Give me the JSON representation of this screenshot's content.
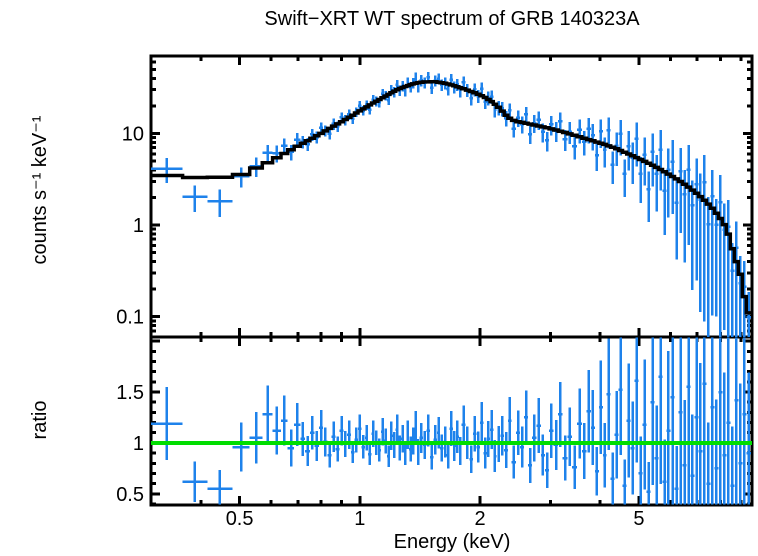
{
  "figure": {
    "title": "Swift−XRT WT spectrum of GRB 140323A",
    "background_color": "#ffffff"
  },
  "colors": {
    "data_points": "#1e82eb",
    "model_line": "#000000",
    "ratio_unity_line": "#00dd00",
    "axes": "#000000",
    "text": "#000000"
  },
  "axes": {
    "xlabel": "Energy (keV)",
    "x_ticks": [
      {
        "value": 0.5,
        "label": "0.5"
      },
      {
        "value": 1,
        "label": "1"
      },
      {
        "value": 2,
        "label": "2"
      },
      {
        "value": 5,
        "label": "5"
      }
    ],
    "top_panel": {
      "ylabel": "counts s⁻¹ keV⁻¹",
      "yscale": "log",
      "y_ticks": [
        {
          "value": 0.1,
          "label": "0.1"
        },
        {
          "value": 1,
          "label": "1"
        },
        {
          "value": 10,
          "label": "10"
        }
      ]
    },
    "bottom_panel": {
      "ylabel": "ratio",
      "yscale": "linear",
      "y_ticks": [
        {
          "value": 0.5,
          "label": "0.5"
        },
        {
          "value": 1,
          "label": "1"
        },
        {
          "value": 1.5,
          "label": "1.5"
        }
      ]
    }
  },
  "chart_data": [
    {
      "type": "scatter",
      "name": "counts-spectrum",
      "title": "Swift−XRT WT spectrum of GRB 140323A",
      "xlabel": "Energy (keV)",
      "ylabel": "counts s⁻¹ keV⁻¹",
      "xscale": "log",
      "yscale": "log",
      "xlim": [
        0.3,
        9.6
      ],
      "ylim": [
        0.06,
        70
      ],
      "x_major_ticks": [
        0.5,
        1,
        2,
        5
      ],
      "y_major_ticks": [
        0.1,
        1,
        10
      ],
      "legend": "blue crosses: observed counts with x bin-width and y error bars; black stepped line: folded model",
      "bin_edges_kev": [
        0.3,
        0.36,
        0.415,
        0.48,
        0.53,
        0.57,
        0.605,
        0.635,
        0.66,
        0.685,
        0.71,
        0.73,
        0.75,
        0.77,
        0.79,
        0.81,
        0.83,
        0.85,
        0.87,
        0.89,
        0.91,
        0.93,
        0.95,
        0.97,
        0.99,
        1.01,
        1.03,
        1.05,
        1.07,
        1.09,
        1.11,
        1.13,
        1.15,
        1.17,
        1.19,
        1.21,
        1.23,
        1.25,
        1.27,
        1.29,
        1.31,
        1.33,
        1.35,
        1.37,
        1.39,
        1.41,
        1.44,
        1.47,
        1.5,
        1.53,
        1.56,
        1.59,
        1.62,
        1.65,
        1.68,
        1.71,
        1.74,
        1.77,
        1.8,
        1.84,
        1.88,
        1.92,
        1.96,
        2.0,
        2.04,
        2.08,
        2.12,
        2.16,
        2.2,
        2.25,
        2.3,
        2.35,
        2.4,
        2.46,
        2.52,
        2.58,
        2.64,
        2.7,
        2.77,
        2.84,
        2.91,
        2.98,
        3.06,
        3.14,
        3.22,
        3.31,
        3.4,
        3.5,
        3.6,
        3.7,
        3.79,
        3.88,
        3.97,
        4.06,
        4.15,
        4.25,
        4.35,
        4.45,
        4.55,
        4.66,
        4.77,
        4.88,
        4.99,
        5.11,
        5.23,
        5.35,
        5.47,
        5.6,
        5.73,
        5.86,
        6.0,
        6.14,
        6.28,
        6.43,
        6.58,
        6.73,
        6.89,
        7.05,
        7.21,
        7.38,
        7.55,
        7.73,
        7.91,
        8.09,
        8.28,
        8.47,
        8.67,
        8.87,
        9.08,
        9.29,
        9.55
      ],
      "model_step_anchors": [
        [
          0.3,
          3.65
        ],
        [
          0.36,
          3.3
        ],
        [
          0.44,
          3.3
        ],
        [
          0.5,
          3.5
        ],
        [
          0.55,
          4.2
        ],
        [
          0.6,
          5.0
        ],
        [
          0.65,
          6.1
        ],
        [
          0.7,
          7.3
        ],
        [
          0.75,
          8.6
        ],
        [
          0.8,
          10.0
        ],
        [
          0.85,
          11.7
        ],
        [
          0.9,
          13.4
        ],
        [
          0.95,
          15.4
        ],
        [
          1.0,
          17.6
        ],
        [
          1.05,
          20.0
        ],
        [
          1.1,
          22.5
        ],
        [
          1.15,
          25.0
        ],
        [
          1.2,
          27.8
        ],
        [
          1.25,
          30.5
        ],
        [
          1.3,
          32.5
        ],
        [
          1.35,
          34.5
        ],
        [
          1.4,
          35.8
        ],
        [
          1.45,
          36.5
        ],
        [
          1.55,
          36.6
        ],
        [
          1.65,
          35.0
        ],
        [
          1.75,
          32.5
        ],
        [
          1.85,
          30.0
        ],
        [
          1.95,
          27.5
        ],
        [
          2.05,
          25.0
        ],
        [
          2.15,
          22.0
        ],
        [
          2.25,
          18.5
        ],
        [
          2.35,
          15.0
        ],
        [
          2.45,
          13.6
        ],
        [
          2.55,
          13.2
        ],
        [
          2.7,
          12.5
        ],
        [
          2.9,
          11.7
        ],
        [
          3.1,
          10.9
        ],
        [
          3.3,
          10.1
        ],
        [
          3.55,
          9.2
        ],
        [
          3.8,
          8.4
        ],
        [
          4.1,
          7.6
        ],
        [
          4.4,
          6.8
        ],
        [
          4.7,
          6.0
        ],
        [
          5.0,
          5.3
        ],
        [
          5.3,
          4.7
        ],
        [
          5.6,
          4.15
        ],
        [
          5.9,
          3.65
        ],
        [
          6.2,
          3.2
        ],
        [
          6.5,
          2.8
        ],
        [
          6.8,
          2.42
        ],
        [
          7.1,
          2.08
        ],
        [
          7.4,
          1.76
        ],
        [
          7.7,
          1.47
        ],
        [
          8.0,
          1.18
        ],
        [
          8.3,
          0.92
        ],
        [
          8.6,
          0.52
        ],
        [
          9.0,
          0.28
        ],
        [
          9.3,
          0.12
        ],
        [
          9.55,
          0.1
        ]
      ],
      "data_over_model_ratio": [
        1.19,
        0.62,
        0.55,
        0.96,
        1.05,
        1.28,
        1.12,
        1.22,
        0.95,
        1.18,
        1.04,
        0.92,
        1.1,
        0.97,
        1.15,
        1.01,
        0.88,
        1.06,
        0.94,
        1.12,
        0.99,
        1.08,
        0.91,
        1.03,
        1.14,
        0.96,
        1.05,
        0.89,
        1.09,
        1.0,
        0.93,
        1.11,
        1.02,
        0.87,
        1.07,
        0.98,
        1.13,
        0.95,
        1.04,
        0.9,
        1.08,
        0.94,
        1.02,
        1.16,
        0.91,
        1.05,
        0.98,
        1.12,
        0.86,
        1.03,
        1.1,
        0.95,
        1.01,
        0.88,
        1.14,
        0.97,
        1.06,
        0.92,
        1.18,
        1.0,
        0.84,
        1.09,
        0.96,
        1.2,
        0.9,
        1.04,
        1.13,
        0.87,
        0.99,
        1.07,
        0.93,
        1.22,
        0.81,
        1.1,
        0.96,
        1.25,
        0.78,
        1.05,
        1.17,
        0.88,
        0.73,
        1.12,
        0.98,
        1.28,
        0.85,
        1.06,
        0.76,
        1.19,
        0.92,
        1.31,
        1.15,
        0.72,
        1.35,
        0.88,
        1.48,
        0.65,
        1.08,
        1.52,
        0.58,
        1.22,
        0.95,
        1.61,
        0.7,
        1.18,
        0.52,
        1.4,
        0.85,
        1.65,
        0.62,
        1.12,
        1.45,
        0.55,
        1.3,
        0.78,
        1.55,
        0.68,
        1.25,
        0.92,
        1.58,
        0.6,
        1.35,
        0.75,
        1.5,
        0.88,
        1.2,
        0.58,
        1.42,
        0.8,
        1.28,
        0.9
      ],
      "fractional_error": [
        0.3,
        0.32,
        0.33,
        0.25,
        0.24,
        0.22,
        0.21,
        0.2,
        0.19,
        0.18,
        0.16,
        0.16,
        0.15,
        0.15,
        0.15,
        0.14,
        0.14,
        0.14,
        0.13,
        0.13,
        0.13,
        0.13,
        0.12,
        0.12,
        0.12,
        0.12,
        0.12,
        0.12,
        0.12,
        0.12,
        0.12,
        0.12,
        0.12,
        0.12,
        0.13,
        0.13,
        0.13,
        0.13,
        0.13,
        0.13,
        0.13,
        0.13,
        0.13,
        0.13,
        0.14,
        0.14,
        0.14,
        0.14,
        0.14,
        0.14,
        0.14,
        0.14,
        0.15,
        0.15,
        0.15,
        0.15,
        0.15,
        0.15,
        0.16,
        0.16,
        0.16,
        0.16,
        0.16,
        0.17,
        0.17,
        0.17,
        0.17,
        0.18,
        0.18,
        0.18,
        0.19,
        0.19,
        0.2,
        0.2,
        0.21,
        0.21,
        0.22,
        0.22,
        0.23,
        0.23,
        0.24,
        0.24,
        0.25,
        0.25,
        0.26,
        0.27,
        0.28,
        0.29,
        0.3,
        0.31,
        0.32,
        0.33,
        0.34,
        0.36,
        0.37,
        0.39,
        0.4,
        0.42,
        0.44,
        0.46,
        0.48,
        0.5,
        0.52,
        0.54,
        0.56,
        0.58,
        0.61,
        0.64,
        0.67,
        0.7,
        0.73,
        0.76,
        0.79,
        0.82,
        0.85,
        0.88,
        0.91,
        0.94,
        0.97,
        1.0,
        0.95,
        0.9,
        0.98,
        0.92,
        0.96,
        1.0,
        0.94,
        0.98,
        0.92,
        0.88
      ]
    },
    {
      "type": "scatter",
      "name": "data-to-model-ratio",
      "xlabel": "Energy (keV)",
      "ylabel": "ratio",
      "xscale": "log",
      "yscale": "linear",
      "xlim": [
        0.3,
        9.6
      ],
      "ylim": [
        0.39,
        2.04
      ],
      "x_major_ticks": [
        0.5,
        1,
        2,
        5
      ],
      "y_major_ticks": [
        0.5,
        1.0,
        1.5,
        2.0
      ],
      "reference_line_y": 1.0,
      "values_source": "data_over_model_ratio of the spectrum panel, same energy bins",
      "errors_source": "fractional_error × ratio, same energy bins"
    }
  ]
}
